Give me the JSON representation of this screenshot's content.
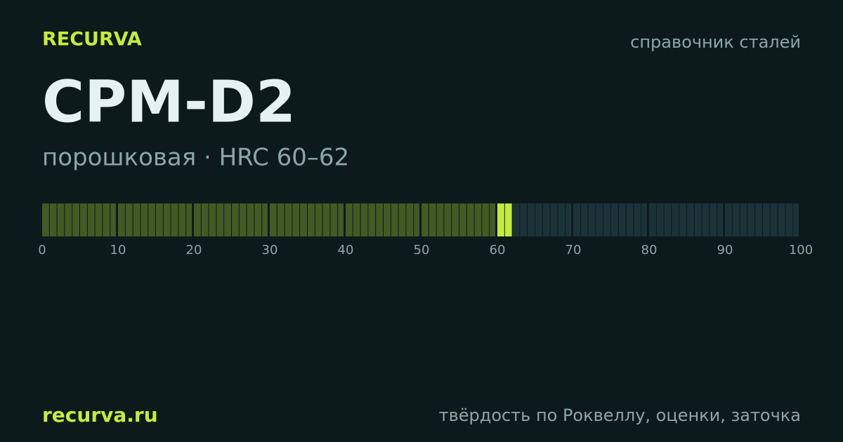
{
  "brand": "RECURVA",
  "section": "справочник сталей",
  "title": "CPM-D2",
  "subtitle": "порошковая · HRC 60–62",
  "scale": {
    "min": 0,
    "max": 100,
    "range": [
      60,
      62
    ],
    "ticks": [
      0,
      10,
      20,
      30,
      40,
      50,
      60,
      70,
      80,
      90,
      100
    ]
  },
  "footer": {
    "site": "recurva.ru",
    "tagline": "твёрдость по Роквеллу, оценки, заточка"
  }
}
